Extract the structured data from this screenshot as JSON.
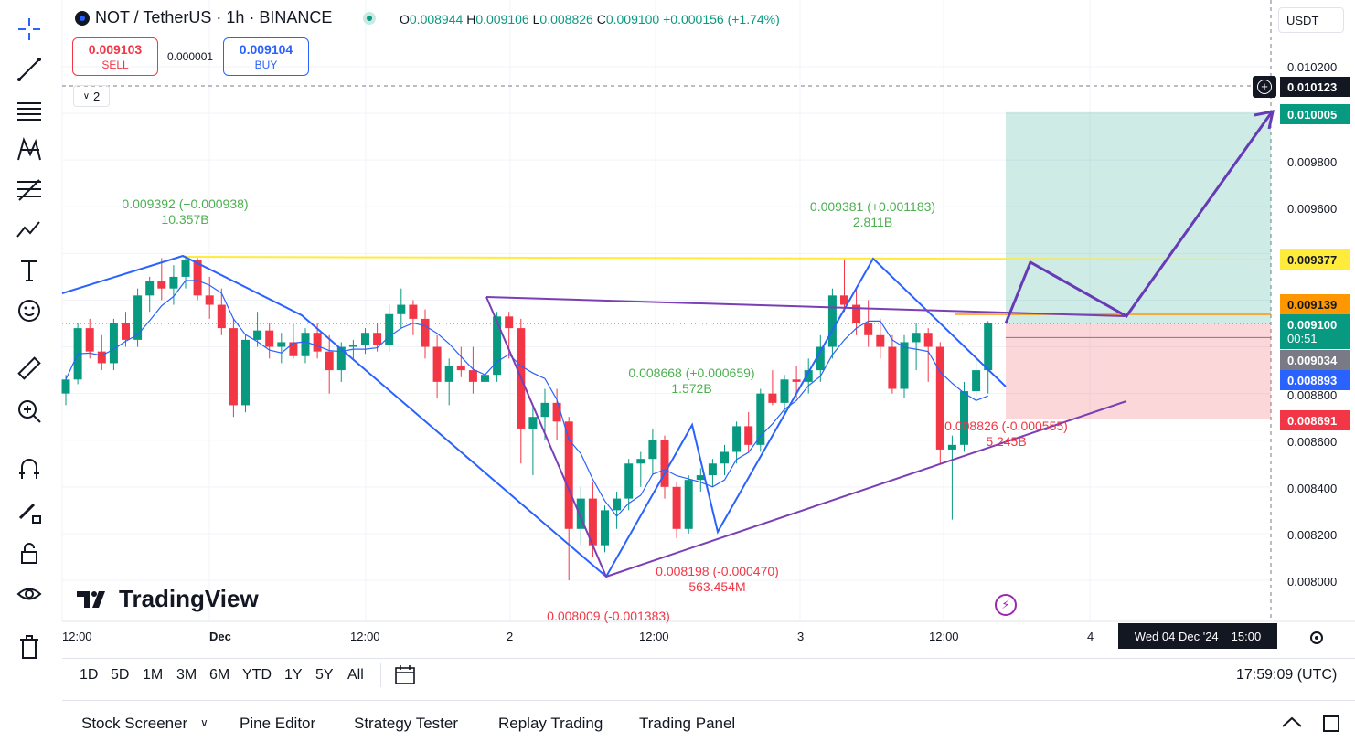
{
  "symbol": {
    "title": "NOT / TetherUS · 1h · BINANCE",
    "open_label": "O",
    "open": "0.008944",
    "high_label": "H",
    "high": "0.009106",
    "low_label": "L",
    "low": "0.008826",
    "close_label": "C",
    "close": "0.009100",
    "change": "+0.000156 (+1.74%)"
  },
  "trade": {
    "sell_price": "0.009103",
    "sell_label": "SELL",
    "spread": "0.000001",
    "buy_price": "0.009104",
    "buy_label": "BUY"
  },
  "indicator_count": "2",
  "currency": "USDT",
  "price_axis": {
    "ticks": [
      "0.010200",
      "0.009800",
      "0.009600",
      "0.008800",
      "0.008600",
      "0.008400",
      "0.008200",
      "0.008000"
    ],
    "labels": {
      "crosshair": "0.010123",
      "target": "0.010005",
      "resistance": "0.009377",
      "orange": "0.009139",
      "last": "0.009100",
      "countdown": "00:51",
      "ma_gray": "0.009034",
      "ma_blue": "0.008893",
      "stop": "0.008691"
    },
    "colors": {
      "target": "#089981",
      "resistance": "#ffeb3b",
      "orange": "#ff9800",
      "last": "#089981",
      "ma_gray": "#787b86",
      "ma_blue": "#2962ff",
      "stop": "#f23645"
    }
  },
  "time_axis": {
    "ticks": [
      "12:00",
      "Dec",
      "12:00",
      "2",
      "12:00",
      "3",
      "12:00",
      "4"
    ],
    "crosshair_date": "Wed 04 Dec '24",
    "crosshair_time": "15:00"
  },
  "annotations": {
    "high1_price": "0.009392 (+0.000938)",
    "high1_vol": "10.357B",
    "high2_price": "0.009381 (+0.001183)",
    "high2_vol": "2.811B",
    "mid_price": "0.008668 (+0.000659)",
    "mid_vol": "1.572B",
    "low1_price": "0.008198 (-0.000470)",
    "low1_vol": "563.454M",
    "low2_price": "0.008009 (-0.001383)",
    "low3_price": "0.008826 (-0.000555)",
    "low3_vol": "5.245B"
  },
  "ranges": [
    "1D",
    "5D",
    "1M",
    "3M",
    "6M",
    "YTD",
    "1Y",
    "5Y",
    "All"
  ],
  "clock": "17:59:09 (UTC)",
  "panels": [
    "Stock Screener",
    "Pine Editor",
    "Strategy Tester",
    "Replay Trading",
    "Trading Panel"
  ],
  "logo_text": "TradingView",
  "tools": [
    "crosshair-icon",
    "trend-line-icon",
    "horizontal-lines-icon",
    "pattern-icon",
    "fib-icon",
    "projection-icon",
    "text-icon",
    "emoji-icon",
    "ruler-icon",
    "zoom-in-icon",
    "magnet-icon",
    "pencil-lock-icon",
    "lock-icon",
    "eye-icon",
    "trash-icon"
  ],
  "chart_data": {
    "type": "candlestick",
    "pair": "NOT / TetherUS",
    "interval": "1h",
    "candles": [
      [
        0.0088,
        0.00888,
        0.00875,
        0.00886
      ],
      [
        0.00886,
        0.0091,
        0.00884,
        0.00908
      ],
      [
        0.00908,
        0.00912,
        0.00895,
        0.00898
      ],
      [
        0.00898,
        0.00905,
        0.0089,
        0.00893
      ],
      [
        0.00893,
        0.00912,
        0.0089,
        0.0091
      ],
      [
        0.0091,
        0.00915,
        0.009,
        0.00903
      ],
      [
        0.00903,
        0.00925,
        0.009,
        0.00922
      ],
      [
        0.00922,
        0.0093,
        0.00915,
        0.00928
      ],
      [
        0.00928,
        0.00938,
        0.0092,
        0.00925
      ],
      [
        0.00925,
        0.00935,
        0.00918,
        0.0093
      ],
      [
        0.0093,
        0.00939,
        0.00925,
        0.00937
      ],
      [
        0.00937,
        0.00938,
        0.0092,
        0.00922
      ],
      [
        0.00922,
        0.0093,
        0.00912,
        0.00918
      ],
      [
        0.00918,
        0.00925,
        0.00905,
        0.00908
      ],
      [
        0.00908,
        0.00912,
        0.0087,
        0.00875
      ],
      [
        0.00875,
        0.00905,
        0.00872,
        0.00903
      ],
      [
        0.00903,
        0.00915,
        0.009,
        0.00907
      ],
      [
        0.00907,
        0.0091,
        0.00895,
        0.009
      ],
      [
        0.009,
        0.00906,
        0.00893,
        0.00902
      ],
      [
        0.00902,
        0.0091,
        0.00895,
        0.00896
      ],
      [
        0.00896,
        0.00908,
        0.00893,
        0.00906
      ],
      [
        0.00906,
        0.0091,
        0.00895,
        0.00898
      ],
      [
        0.00898,
        0.00905,
        0.0088,
        0.0089
      ],
      [
        0.0089,
        0.00902,
        0.00885,
        0.009
      ],
      [
        0.009,
        0.00903,
        0.00895,
        0.00901
      ],
      [
        0.00901,
        0.00908,
        0.00897,
        0.00906
      ],
      [
        0.00906,
        0.0091,
        0.00898,
        0.00901
      ],
      [
        0.00901,
        0.00918,
        0.00898,
        0.00914
      ],
      [
        0.00914,
        0.00925,
        0.00908,
        0.00918
      ],
      [
        0.00918,
        0.0092,
        0.00905,
        0.00912
      ],
      [
        0.00912,
        0.00916,
        0.00895,
        0.009
      ],
      [
        0.009,
        0.00905,
        0.00878,
        0.00885
      ],
      [
        0.00885,
        0.00895,
        0.00875,
        0.00892
      ],
      [
        0.00892,
        0.009,
        0.00887,
        0.0089
      ],
      [
        0.0089,
        0.009,
        0.0088,
        0.00885
      ],
      [
        0.00885,
        0.00895,
        0.00875,
        0.00888
      ],
      [
        0.00888,
        0.00915,
        0.00885,
        0.00913
      ],
      [
        0.00913,
        0.00915,
        0.00895,
        0.00908
      ],
      [
        0.00908,
        0.00912,
        0.0085,
        0.00865
      ],
      [
        0.00865,
        0.00875,
        0.00845,
        0.0087
      ],
      [
        0.0087,
        0.00882,
        0.0086,
        0.00876
      ],
      [
        0.00876,
        0.00882,
        0.0086,
        0.00868
      ],
      [
        0.00868,
        0.0087,
        0.008,
        0.00822
      ],
      [
        0.00822,
        0.0084,
        0.00815,
        0.00835
      ],
      [
        0.00835,
        0.00842,
        0.0081,
        0.00815
      ],
      [
        0.00815,
        0.00832,
        0.00812,
        0.0083
      ],
      [
        0.0083,
        0.00838,
        0.00822,
        0.00835
      ],
      [
        0.00835,
        0.00852,
        0.0083,
        0.0085
      ],
      [
        0.0085,
        0.00855,
        0.0084,
        0.00852
      ],
      [
        0.00852,
        0.00865,
        0.00845,
        0.0086
      ],
      [
        0.0086,
        0.00862,
        0.00835,
        0.0084
      ],
      [
        0.0084,
        0.00842,
        0.00818,
        0.00822
      ],
      [
        0.00822,
        0.00845,
        0.0082,
        0.00843
      ],
      [
        0.00843,
        0.00848,
        0.00838,
        0.00845
      ],
      [
        0.00845,
        0.00852,
        0.0084,
        0.0085
      ],
      [
        0.0085,
        0.00858,
        0.00845,
        0.00855
      ],
      [
        0.00855,
        0.00868,
        0.0085,
        0.00866
      ],
      [
        0.00866,
        0.00872,
        0.00855,
        0.00858
      ],
      [
        0.00858,
        0.00882,
        0.00855,
        0.0088
      ],
      [
        0.0088,
        0.0089,
        0.00875,
        0.00876
      ],
      [
        0.00876,
        0.00888,
        0.00872,
        0.00886
      ],
      [
        0.00886,
        0.00892,
        0.00878,
        0.00885
      ],
      [
        0.00885,
        0.00895,
        0.0088,
        0.0089
      ],
      [
        0.0089,
        0.00905,
        0.00885,
        0.009
      ],
      [
        0.009,
        0.00925,
        0.00895,
        0.00922
      ],
      [
        0.00922,
        0.00938,
        0.00915,
        0.00918
      ],
      [
        0.00918,
        0.00925,
        0.00905,
        0.0091
      ],
      [
        0.0091,
        0.0092,
        0.009,
        0.00905
      ],
      [
        0.00905,
        0.00912,
        0.00895,
        0.009
      ],
      [
        0.009,
        0.00905,
        0.0088,
        0.00882
      ],
      [
        0.00882,
        0.00905,
        0.00878,
        0.00902
      ],
      [
        0.00902,
        0.0091,
        0.0089,
        0.00906
      ],
      [
        0.00906,
        0.00908,
        0.00885,
        0.009
      ],
      [
        0.009,
        0.00902,
        0.0085,
        0.00856
      ],
      [
        0.00856,
        0.00862,
        0.00826,
        0.00858
      ],
      [
        0.00858,
        0.00885,
        0.00855,
        0.00881
      ],
      [
        0.00881,
        0.00895,
        0.00878,
        0.0089
      ],
      [
        0.0089,
        0.00911,
        0.0088,
        0.0091
      ]
    ]
  }
}
